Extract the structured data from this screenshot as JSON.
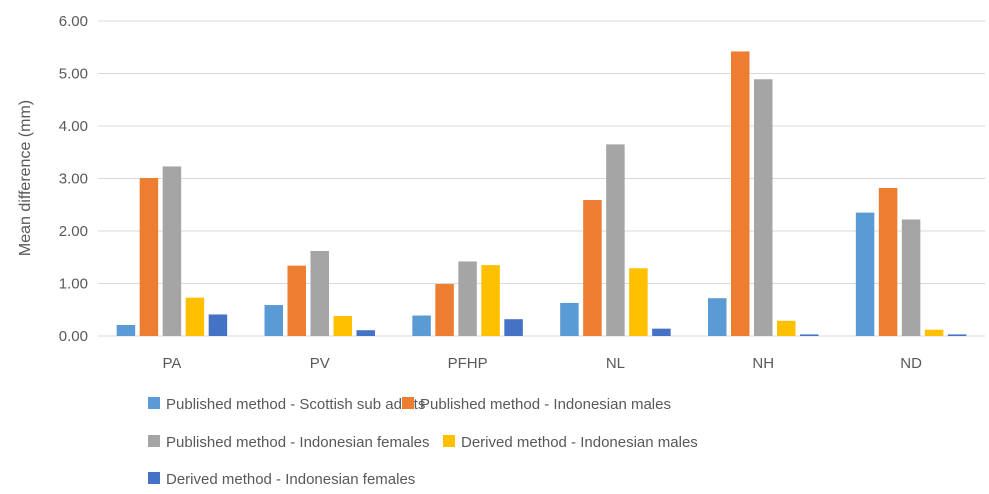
{
  "chart_data": {
    "type": "bar",
    "title": "",
    "xlabel": "",
    "ylabel": "Mean difference (mm)",
    "ylim": [
      0,
      6
    ],
    "yticks": [
      "0.00",
      "1.00",
      "2.00",
      "3.00",
      "4.00",
      "5.00",
      "6.00"
    ],
    "grid": true,
    "legend_position": "bottom",
    "categories": [
      "PA",
      "PV",
      "PFHP",
      "NL",
      "NH",
      "ND"
    ],
    "series": [
      {
        "name": "Published method - Scottish sub adults",
        "color": "#5B9BD5",
        "values": [
          0.21,
          0.59,
          0.39,
          0.63,
          0.72,
          2.35
        ]
      },
      {
        "name": "Published method - Indonesian males",
        "color": "#ED7D31",
        "values": [
          3.01,
          1.34,
          0.99,
          2.59,
          5.42,
          2.82
        ]
      },
      {
        "name": "Published method - Indonesian females",
        "color": "#A5A5A5",
        "values": [
          3.23,
          1.62,
          1.42,
          3.65,
          4.89,
          2.22
        ]
      },
      {
        "name": "Derived method - Indonesian males",
        "color": "#FFC000",
        "values": [
          0.73,
          0.38,
          1.35,
          1.29,
          0.29,
          0.12
        ]
      },
      {
        "name": "Derived method - Indonesian females",
        "color": "#4472C4",
        "values": [
          0.41,
          0.11,
          0.32,
          0.14,
          0.03,
          0.03
        ]
      }
    ]
  }
}
